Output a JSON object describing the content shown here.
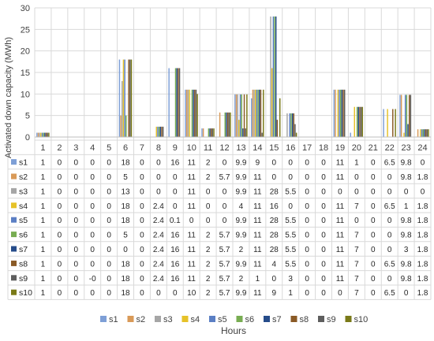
{
  "chart_data": {
    "type": "bar",
    "xlabel": "Hours",
    "ylabel": "Activated down capacity (MWh)",
    "ylim": [
      0,
      30
    ],
    "yticks": [
      0,
      5,
      10,
      15,
      20,
      25,
      30
    ],
    "categories": [
      "1",
      "2",
      "3",
      "4",
      "5",
      "6",
      "7",
      "8",
      "9",
      "10",
      "11",
      "12",
      "13",
      "14",
      "15",
      "16",
      "17",
      "18",
      "19",
      "20",
      "21",
      "22",
      "23",
      "24"
    ],
    "grid": true,
    "legend_position": "bottom",
    "colors": [
      "#7e9fd6",
      "#d99a58",
      "#a6a6a6",
      "#e6c229",
      "#5b7fc4",
      "#78ad52",
      "#264c8a",
      "#8a5a26",
      "#5e5e5e",
      "#7a7a18"
    ],
    "series": [
      {
        "name": "s1",
        "values": [
          1,
          0,
          0,
          0,
          0,
          18,
          0,
          0,
          16,
          11,
          2,
          0,
          9.9,
          9,
          0,
          0,
          0,
          0,
          11,
          1,
          0,
          6.5,
          9.8,
          0
        ],
        "labels": [
          "1",
          "0",
          "0",
          "0",
          "0",
          "18",
          "0",
          "0",
          "16",
          "11",
          "2",
          "0",
          "9.9",
          "9",
          "0",
          "0",
          "0",
          "0",
          "11",
          "1",
          "0",
          "6.5",
          "9.8",
          "0"
        ]
      },
      {
        "name": "s2",
        "values": [
          1,
          0,
          0,
          0,
          0,
          5,
          0,
          0,
          0,
          11,
          2,
          5.7,
          9.9,
          11,
          0,
          0,
          0,
          0,
          11,
          0,
          0,
          0,
          9.8,
          1.8
        ],
        "labels": [
          "1",
          "0",
          "0",
          "0",
          "0",
          "5",
          "0",
          "0",
          "0",
          "11",
          "2",
          "5.7",
          "9.9",
          "11",
          "0",
          "0",
          "0",
          "0",
          "11",
          "0",
          "0",
          "0",
          "9.8",
          "1.8"
        ]
      },
      {
        "name": "s3",
        "values": [
          1,
          0,
          0,
          0,
          0,
          13,
          0,
          0,
          0,
          11,
          0,
          0,
          9.9,
          11,
          28,
          5.5,
          0,
          0,
          0,
          0,
          0,
          0,
          0,
          0
        ],
        "labels": [
          "1",
          "0",
          "0",
          "0",
          "0",
          "13",
          "0",
          "0",
          "0",
          "11",
          "0",
          "0",
          "9.9",
          "11",
          "28",
          "5.5",
          "0",
          "0",
          "0",
          "0",
          "0",
          "0",
          "0",
          "0"
        ]
      },
      {
        "name": "s4",
        "values": [
          1,
          0,
          0,
          0,
          0,
          18,
          0,
          2.4,
          0,
          11,
          0,
          0,
          4,
          11,
          16,
          0,
          0,
          0,
          11,
          7,
          0,
          6.5,
          1,
          1.8
        ],
        "labels": [
          "1",
          "0",
          "0",
          "0",
          "0",
          "18",
          "0",
          "2.4",
          "0",
          "11",
          "0",
          "0",
          "4",
          "11",
          "16",
          "0",
          "0",
          "0",
          "11",
          "7",
          "0",
          "6.5",
          "1",
          "1.8"
        ]
      },
      {
        "name": "s5",
        "values": [
          1,
          0,
          0,
          0,
          0,
          18,
          0,
          2.4,
          0.1,
          0,
          0,
          0,
          9.9,
          11,
          28,
          5.5,
          0,
          0,
          11,
          0,
          0,
          0,
          9.8,
          1.8
        ],
        "labels": [
          "1",
          "0",
          "0",
          "0",
          "0",
          "18",
          "0",
          "2.4",
          "0.1",
          "0",
          "0",
          "0",
          "9.9",
          "11",
          "28",
          "5.5",
          "0",
          "0",
          "11",
          "0",
          "0",
          "0",
          "9.8",
          "1.8"
        ]
      },
      {
        "name": "s6",
        "values": [
          1,
          0,
          0,
          0,
          0,
          5,
          0,
          2.4,
          16,
          11,
          2,
          5.7,
          9.9,
          11,
          28,
          5.5,
          0,
          0,
          11,
          7,
          0,
          0,
          9.8,
          1.8
        ],
        "labels": [
          "1",
          "0",
          "0",
          "0",
          "0",
          "5",
          "0",
          "2.4",
          "16",
          "11",
          "2",
          "5.7",
          "9.9",
          "11",
          "28",
          "5.5",
          "0",
          "0",
          "11",
          "7",
          "0",
          "0",
          "9.8",
          "1.8"
        ]
      },
      {
        "name": "s7",
        "values": [
          1,
          0,
          0,
          0,
          0,
          0,
          0,
          2.4,
          16,
          11,
          2,
          5.7,
          2,
          11,
          28,
          5.5,
          0,
          0,
          11,
          7,
          0,
          0,
          3,
          1.8
        ],
        "labels": [
          "1",
          "0",
          "0",
          "0",
          "0",
          "0",
          "0",
          "2.4",
          "16",
          "11",
          "2",
          "5.7",
          "2",
          "11",
          "28",
          "5.5",
          "0",
          "0",
          "11",
          "7",
          "0",
          "0",
          "3",
          "1.8"
        ]
      },
      {
        "name": "s8",
        "values": [
          1,
          0,
          0,
          0,
          0,
          18,
          0,
          2.4,
          16,
          11,
          2,
          5.7,
          9.9,
          11,
          4,
          5.5,
          0,
          0,
          11,
          7,
          0,
          6.5,
          9.8,
          1.8
        ],
        "labels": [
          "1",
          "0",
          "0",
          "0",
          "0",
          "18",
          "0",
          "2.4",
          "16",
          "11",
          "2",
          "5.7",
          "9.9",
          "11",
          "4",
          "5.5",
          "0",
          "0",
          "11",
          "7",
          "0",
          "6.5",
          "9.8",
          "1.8"
        ]
      },
      {
        "name": "s9",
        "values": [
          1,
          0,
          0,
          0,
          0,
          18,
          0,
          2.4,
          16,
          11,
          2,
          5.7,
          2,
          1,
          0,
          3,
          0,
          0,
          11,
          7,
          0,
          0,
          9.8,
          1.8
        ],
        "labels": [
          "1",
          "0",
          "0",
          "-0",
          "0",
          "18",
          "0",
          "2.4",
          "16",
          "11",
          "2",
          "5.7",
          "2",
          "1",
          "0",
          "3",
          "0",
          "0",
          "11",
          "7",
          "0",
          "0",
          "9.8",
          "1.8"
        ]
      },
      {
        "name": "s10",
        "values": [
          1,
          0,
          0,
          0,
          0,
          18,
          0,
          0,
          0,
          10,
          2,
          5.7,
          9.9,
          11,
          9,
          1,
          0,
          0,
          0,
          7,
          0,
          6.5,
          0,
          1.8
        ],
        "labels": [
          "1",
          "0",
          "0",
          "0",
          "0",
          "18",
          "0",
          "0",
          "0",
          "10",
          "2",
          "5.7",
          "9.9",
          "11",
          "9",
          "1",
          "0",
          "0",
          "0",
          "7",
          "0",
          "6.5",
          "0",
          "1.8"
        ]
      }
    ]
  }
}
